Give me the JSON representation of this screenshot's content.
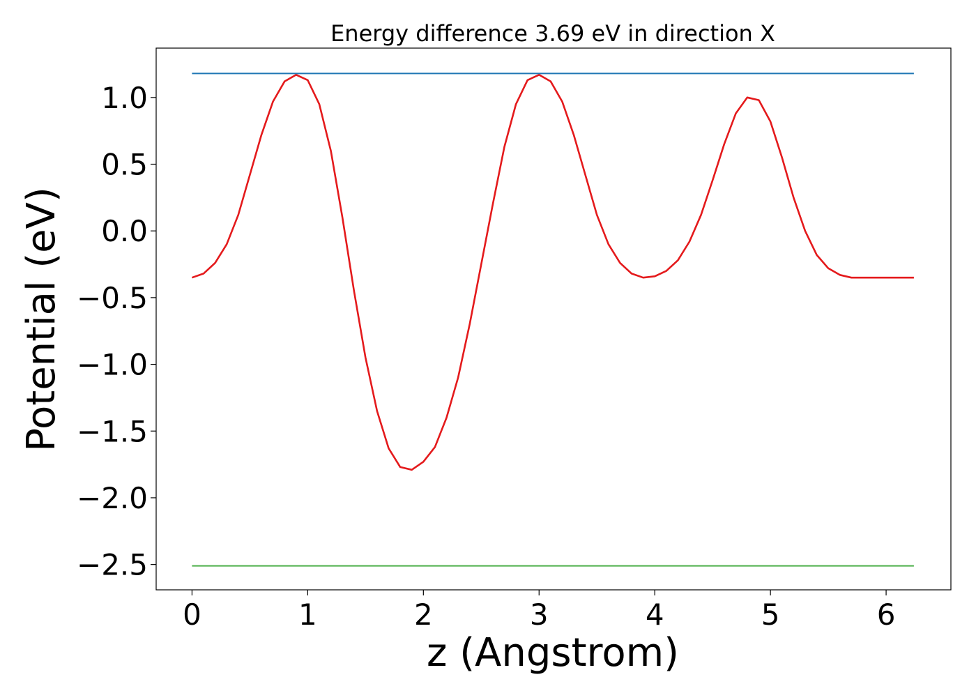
{
  "chart_data": {
    "type": "line",
    "title": "Energy difference 3.69 eV in direction X",
    "xlabel": "z (Angstrom)",
    "ylabel": "Potential (eV)",
    "xlim": [
      -0.31,
      6.56
    ],
    "ylim": [
      -2.69,
      1.37
    ],
    "xticks": [
      0,
      1,
      2,
      3,
      4,
      5,
      6
    ],
    "xtick_labels": [
      "0",
      "1",
      "2",
      "3",
      "4",
      "5",
      "6"
    ],
    "yticks": [
      1.0,
      0.5,
      0.0,
      -0.5,
      -1.0,
      -1.5,
      -2.0,
      -2.5
    ],
    "ytick_labels": [
      "1.0",
      "0.5",
      "0.0",
      "−0.5",
      "−1.0",
      "−1.5",
      "−2.0",
      "−2.5"
    ],
    "grid": false,
    "legend": "none",
    "series": [
      {
        "color": "#e41a1c",
        "x": [
          0.0,
          0.1,
          0.2,
          0.3,
          0.4,
          0.5,
          0.6,
          0.7,
          0.8,
          0.9,
          1.0,
          1.1,
          1.2,
          1.3,
          1.4,
          1.5,
          1.6,
          1.7,
          1.8,
          1.9,
          2.0,
          2.1,
          2.2,
          2.3,
          2.4,
          2.5,
          2.6,
          2.7,
          2.8,
          2.9,
          3.0,
          3.1,
          3.2,
          3.3,
          3.4,
          3.5,
          3.6,
          3.7,
          3.8,
          3.9,
          4.0,
          4.1,
          4.2,
          4.3,
          4.4,
          4.5,
          4.6,
          4.7,
          4.8,
          4.9,
          5.0,
          5.1,
          5.2,
          5.3,
          5.4,
          5.5,
          5.6,
          5.7,
          5.8,
          5.9,
          6.0,
          6.1,
          6.24
        ],
        "y": [
          -0.35,
          -0.32,
          -0.24,
          -0.1,
          0.12,
          0.42,
          0.72,
          0.97,
          1.12,
          1.17,
          1.13,
          0.95,
          0.6,
          0.1,
          -0.45,
          -0.95,
          -1.35,
          -1.63,
          -1.77,
          -1.79,
          -1.73,
          -1.62,
          -1.4,
          -1.1,
          -0.7,
          -0.25,
          0.2,
          0.63,
          0.95,
          1.13,
          1.17,
          1.12,
          0.97,
          0.72,
          0.42,
          0.12,
          -0.1,
          -0.24,
          -0.32,
          -0.35,
          -0.34,
          -0.3,
          -0.22,
          -0.08,
          0.12,
          0.38,
          0.65,
          0.88,
          1.0,
          0.98,
          0.82,
          0.55,
          0.25,
          0.0,
          -0.18,
          -0.28,
          -0.33,
          -0.35,
          -0.35,
          -0.35,
          -0.35,
          -0.35,
          -0.35
        ]
      },
      {
        "color": "#1f77b4",
        "x": [
          0.0,
          6.24
        ],
        "y": [
          1.18,
          1.18
        ]
      },
      {
        "color": "#4daf4a",
        "x": [
          0.0,
          6.24
        ],
        "y": [
          -2.51,
          -2.51
        ]
      }
    ]
  }
}
